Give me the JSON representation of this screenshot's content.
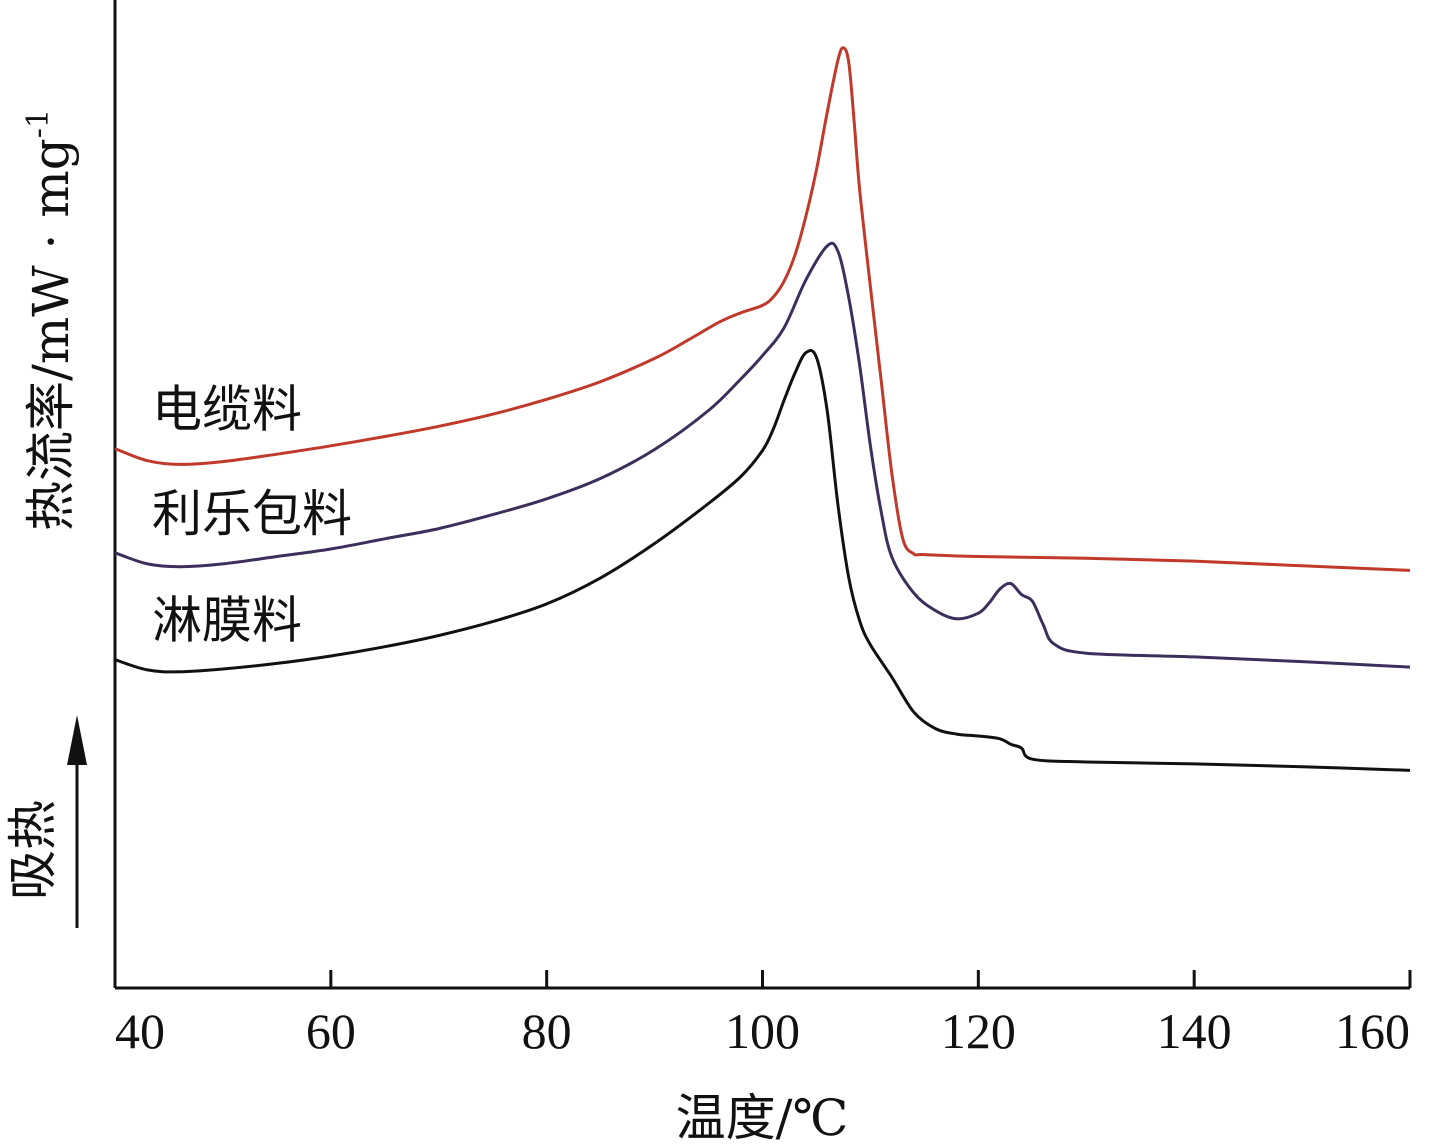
{
  "chart_data": {
    "type": "line",
    "xlabel": "温度/℃",
    "ylabel": "热流率/mW · mg",
    "ylabel_superscript": "-1",
    "endo_label": "吸热",
    "xlim": [
      40,
      160
    ],
    "ylim": [
      0,
      10
    ],
    "xticks": [
      40,
      60,
      80,
      100,
      120,
      140,
      160
    ],
    "grid": false,
    "legend": "inline-left",
    "series": [
      {
        "name": "电缆料",
        "color": "#c0392b",
        "x": [
          40,
          43,
          46,
          50,
          55,
          60,
          65,
          70,
          75,
          80,
          85,
          90,
          93,
          96,
          98,
          100,
          101,
          102,
          103,
          104,
          105,
          106,
          107,
          107.5,
          108,
          108.5,
          109,
          110,
          111,
          112,
          113,
          114,
          115,
          120,
          130,
          140,
          150,
          160
        ],
        "y": [
          5.8,
          5.67,
          5.63,
          5.66,
          5.74,
          5.83,
          5.93,
          6.04,
          6.17,
          6.33,
          6.52,
          6.77,
          6.96,
          7.16,
          7.26,
          7.34,
          7.43,
          7.6,
          7.88,
          8.29,
          8.8,
          9.42,
          9.98,
          10.11,
          9.95,
          9.31,
          8.59,
          7.54,
          6.53,
          5.52,
          4.83,
          4.67,
          4.66,
          4.64,
          4.62,
          4.59,
          4.54,
          4.49
        ]
      },
      {
        "name": "利乐包料",
        "color": "#3d2f5c",
        "x": [
          40,
          43,
          46,
          50,
          55,
          60,
          65,
          70,
          75,
          80,
          85,
          90,
          95,
          98,
          100,
          102,
          104,
          106,
          107,
          108,
          109,
          110,
          111,
          112,
          114,
          116,
          118,
          120,
          121,
          122,
          123,
          124,
          125,
          126,
          127,
          130,
          140,
          150,
          160
        ],
        "y": [
          4.68,
          4.56,
          4.53,
          4.56,
          4.64,
          4.72,
          4.83,
          4.94,
          5.09,
          5.26,
          5.48,
          5.79,
          6.21,
          6.55,
          6.8,
          7.1,
          7.61,
          7.98,
          7.92,
          7.42,
          6.7,
          5.83,
          5.12,
          4.63,
          4.25,
          4.06,
          3.97,
          4.03,
          4.14,
          4.29,
          4.35,
          4.23,
          4.16,
          3.91,
          3.7,
          3.6,
          3.56,
          3.51,
          3.45
        ]
      },
      {
        "name": "淋膜料",
        "color": "#111111",
        "x": [
          40,
          43,
          46,
          50,
          55,
          60,
          65,
          70,
          75,
          80,
          85,
          90,
          95,
          98,
          100,
          101,
          102,
          103,
          104,
          105,
          106,
          107,
          108,
          109,
          110,
          112,
          114,
          116,
          118,
          120,
          122,
          123,
          124,
          125,
          130,
          140,
          150,
          160
        ],
        "y": [
          3.53,
          3.42,
          3.4,
          3.43,
          3.49,
          3.57,
          3.67,
          3.79,
          3.94,
          4.13,
          4.41,
          4.78,
          5.21,
          5.5,
          5.78,
          6.01,
          6.32,
          6.61,
          6.83,
          6.78,
          6.2,
          5.19,
          4.41,
          3.95,
          3.69,
          3.34,
          2.97,
          2.79,
          2.73,
          2.71,
          2.68,
          2.62,
          2.58,
          2.46,
          2.43,
          2.41,
          2.38,
          2.34
        ]
      }
    ]
  }
}
